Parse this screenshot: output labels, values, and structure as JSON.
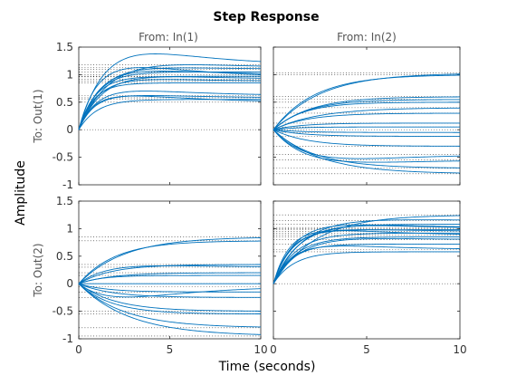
{
  "chart_data": {
    "type": "line",
    "title": "Step Response",
    "xlabel": "Time (seconds)",
    "ylabel": "Amplitude",
    "column_headers": [
      "From: In(1)",
      "From: In(2)"
    ],
    "row_headers": [
      "To: Out(1)",
      "To: Out(2)"
    ],
    "xlim": [
      0,
      10
    ],
    "ylim": [
      -1,
      1.5
    ],
    "x_ticks": [
      0,
      5,
      10
    ],
    "x_tick_labels": [
      "0",
      "5",
      "10"
    ],
    "y_ticks": [
      -1,
      -0.5,
      0,
      0.5,
      1,
      1.5
    ],
    "y_tick_labels": [
      "-1",
      "-0.5",
      "0",
      "0.5",
      "1",
      "1.5"
    ],
    "line_color": "#0072BD",
    "steady_state_color": "#000000",
    "panels": [
      {
        "from": "In(1)",
        "to": "Out(1)",
        "series": [
          {
            "final": 1.18,
            "tau": 1.4,
            "peak": 0.3
          },
          {
            "final": 1.1,
            "tau": 1.2,
            "peak": 0.05
          },
          {
            "final": 1.05,
            "tau": 1.0,
            "peak": 0.0
          },
          {
            "final": 1.0,
            "tau": 1.1,
            "peak": 0.1
          },
          {
            "final": 0.97,
            "tau": 0.9,
            "peak": 0.0
          },
          {
            "final": 0.92,
            "tau": 1.3,
            "peak": 0.08
          },
          {
            "final": 0.88,
            "tau": 1.0,
            "peak": 0.05
          },
          {
            "final": 0.85,
            "tau": 0.8,
            "peak": 0.0
          },
          {
            "final": 1.13,
            "tau": 1.8,
            "peak": 0.15
          },
          {
            "final": 0.62,
            "tau": 0.9,
            "peak": 0.1
          },
          {
            "final": 0.58,
            "tau": 0.8,
            "peak": 0.05
          },
          {
            "final": 0.55,
            "tau": 1.0,
            "peak": 0.0
          },
          {
            "final": 0.5,
            "tau": 0.7,
            "peak": 0.12
          },
          {
            "final": 0.96,
            "tau": 0.9,
            "peak": 0.2
          }
        ]
      },
      {
        "from": "In(2)",
        "to": "Out(1)",
        "series": [
          {
            "final": 1.03,
            "tau": 2.5,
            "peak": 0.0
          },
          {
            "final": 1.0,
            "tau": 2.2,
            "peak": 0.0
          },
          {
            "final": 0.6,
            "tau": 2.0,
            "peak": 0.0
          },
          {
            "final": 0.55,
            "tau": 1.8,
            "peak": 0.0
          },
          {
            "final": 0.5,
            "tau": 1.6,
            "peak": 0.0
          },
          {
            "final": 0.4,
            "tau": 2.4,
            "peak": 0.0
          },
          {
            "final": 0.3,
            "tau": 1.8,
            "peak": 0.0
          },
          {
            "final": 0.12,
            "tau": 1.5,
            "peak": 0.0
          },
          {
            "final": 0.05,
            "tau": 1.2,
            "peak": 0.0
          },
          {
            "final": -0.05,
            "tau": 1.5,
            "peak": 0.0
          },
          {
            "final": -0.12,
            "tau": 1.6,
            "peak": 0.0
          },
          {
            "final": -0.3,
            "tau": 1.8,
            "peak": 0.0
          },
          {
            "final": -0.45,
            "tau": 2.0,
            "peak": 0.15
          },
          {
            "final": -0.55,
            "tau": 1.8,
            "peak": 0.1
          },
          {
            "final": -0.7,
            "tau": 2.2,
            "peak": 0.0
          },
          {
            "final": -0.8,
            "tau": 2.5,
            "peak": 0.0
          }
        ]
      },
      {
        "from": "In(1)",
        "to": "Out(2)",
        "series": [
          {
            "final": 0.85,
            "tau": 2.5,
            "peak": 0.0
          },
          {
            "final": 0.78,
            "tau": 2.0,
            "peak": 0.0
          },
          {
            "final": 0.35,
            "tau": 1.8,
            "peak": 0.0
          },
          {
            "final": 0.3,
            "tau": 1.5,
            "peak": 0.05
          },
          {
            "final": 0.2,
            "tau": 1.8,
            "peak": 0.0
          },
          {
            "final": 0.15,
            "tau": 1.2,
            "peak": 0.0
          },
          {
            "final": 0.0,
            "tau": 1.0,
            "peak": 0.0
          },
          {
            "final": -0.05,
            "tau": 1.5,
            "peak": 0.2
          },
          {
            "final": -0.15,
            "tau": 1.5,
            "peak": 0.0
          },
          {
            "final": -0.25,
            "tau": 1.8,
            "peak": 0.0
          },
          {
            "final": -0.5,
            "tau": 2.0,
            "peak": 0.0
          },
          {
            "final": -0.55,
            "tau": 1.8,
            "peak": 0.0
          },
          {
            "final": -0.8,
            "tau": 2.5,
            "peak": 0.0
          },
          {
            "final": -0.95,
            "tau": 2.8,
            "peak": 0.0
          }
        ]
      },
      {
        "from": "In(2)",
        "to": "Out(2)",
        "series": [
          {
            "final": 1.25,
            "tau": 2.2,
            "peak": 0.0
          },
          {
            "final": 1.15,
            "tau": 1.6,
            "peak": 0.05
          },
          {
            "final": 1.08,
            "tau": 1.3,
            "peak": 0.0
          },
          {
            "final": 1.02,
            "tau": 1.1,
            "peak": 0.08
          },
          {
            "final": 0.98,
            "tau": 0.9,
            "peak": 0.0
          },
          {
            "final": 0.95,
            "tau": 1.0,
            "peak": 0.05
          },
          {
            "final": 0.92,
            "tau": 1.2,
            "peak": 0.0
          },
          {
            "final": 0.88,
            "tau": 0.8,
            "peak": 0.1
          },
          {
            "final": 0.8,
            "tau": 1.4,
            "peak": 0.05
          },
          {
            "final": 0.72,
            "tau": 1.0,
            "peak": 0.0
          },
          {
            "final": 0.62,
            "tau": 0.9,
            "peak": 0.08
          },
          {
            "final": 0.58,
            "tau": 1.1,
            "peak": 0.0
          },
          {
            "final": 1.0,
            "tau": 1.5,
            "peak": 0.12
          },
          {
            "final": 0.85,
            "tau": 1.2,
            "peak": 0.0
          }
        ]
      }
    ]
  }
}
